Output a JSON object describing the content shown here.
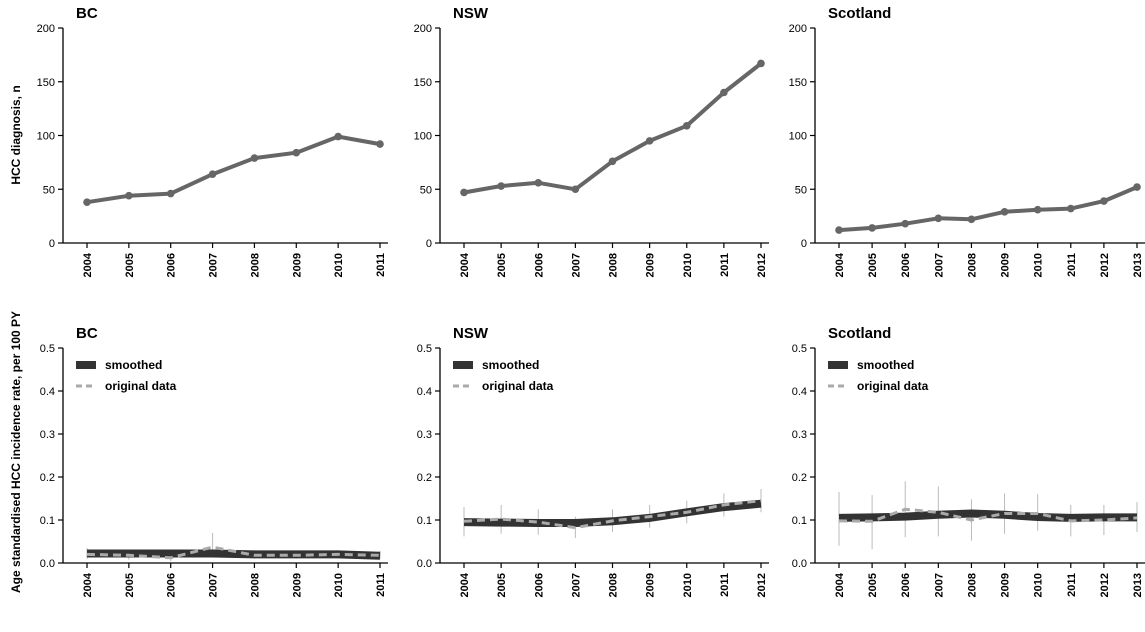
{
  "y_axis_labels": {
    "top": "HCC diagnosis, n",
    "bottom": "Age standardised HCC incidence rate, per 100 PY"
  },
  "legend": {
    "smoothed": "smoothed",
    "original": "original data"
  },
  "colors": {
    "count_line": "#666666",
    "smoothed_band": "#333333",
    "original_dash": "#aaaaaa",
    "error_bar": "#bbbbbb"
  },
  "chart_data": [
    {
      "type": "line",
      "title": "BC",
      "x": [
        "2004",
        "2005",
        "2006",
        "2007",
        "2008",
        "2009",
        "2010",
        "2011"
      ],
      "series": [
        {
          "values": [
            38,
            44,
            46,
            64,
            79,
            84,
            99,
            92
          ]
        }
      ],
      "ylim": [
        0,
        200
      ],
      "yticks": [
        0,
        50,
        100,
        150,
        200
      ],
      "ytick_labels": [
        "0",
        "50",
        "100",
        "150",
        "200"
      ]
    },
    {
      "type": "line",
      "title": "NSW",
      "x": [
        "2004",
        "2005",
        "2006",
        "2007",
        "2008",
        "2009",
        "2010",
        "2011",
        "2012"
      ],
      "series": [
        {
          "values": [
            47,
            53,
            56,
            50,
            76,
            95,
            109,
            140,
            167
          ]
        }
      ],
      "ylim": [
        0,
        200
      ],
      "yticks": [
        0,
        50,
        100,
        150,
        200
      ],
      "ytick_labels": [
        "0",
        "50",
        "100",
        "150",
        "200"
      ]
    },
    {
      "type": "line",
      "title": "Scotland",
      "x": [
        "2004",
        "2005",
        "2006",
        "2007",
        "2008",
        "2009",
        "2010",
        "2011",
        "2012",
        "2013"
      ],
      "series": [
        {
          "values": [
            12,
            14,
            18,
            23,
            22,
            29,
            31,
            32,
            39,
            52
          ]
        }
      ],
      "ylim": [
        0,
        200
      ],
      "yticks": [
        0,
        50,
        100,
        150,
        200
      ],
      "ytick_labels": [
        "0",
        "50",
        "100",
        "150",
        "200"
      ]
    },
    {
      "type": "line",
      "title": "BC",
      "x": [
        "2004",
        "2005",
        "2006",
        "2007",
        "2008",
        "2009",
        "2010",
        "2011"
      ],
      "series": [
        {
          "name": "smoothed",
          "values": [
            0.022,
            0.022,
            0.022,
            0.022,
            0.02,
            0.02,
            0.02,
            0.017
          ]
        },
        {
          "name": "original data",
          "values": [
            0.02,
            0.018,
            0.012,
            0.037,
            0.018,
            0.018,
            0.02,
            0.018
          ],
          "err_low": [
            0.01,
            0.008,
            0.004,
            0.02,
            0.01,
            0.01,
            0.012,
            0.01
          ],
          "err_high": [
            0.035,
            0.03,
            0.022,
            0.07,
            0.03,
            0.028,
            0.03,
            0.028
          ]
        }
      ],
      "ylim": [
        0,
        0.5
      ],
      "yticks": [
        0,
        0.1,
        0.2,
        0.3,
        0.4,
        0.5
      ],
      "ytick_labels": [
        "0.0",
        "0.1",
        "0.2",
        "0.3",
        "0.4",
        "0.5"
      ]
    },
    {
      "type": "line",
      "title": "NSW",
      "x": [
        "2004",
        "2005",
        "2006",
        "2007",
        "2008",
        "2009",
        "2010",
        "2011",
        "2012"
      ],
      "series": [
        {
          "name": "smoothed",
          "values": [
            0.095,
            0.094,
            0.093,
            0.093,
            0.097,
            0.105,
            0.118,
            0.13,
            0.138
          ]
        },
        {
          "name": "original data",
          "values": [
            0.097,
            0.102,
            0.095,
            0.082,
            0.098,
            0.108,
            0.118,
            0.135,
            0.145
          ],
          "err_low": [
            0.062,
            0.068,
            0.066,
            0.058,
            0.072,
            0.082,
            0.092,
            0.108,
            0.118
          ],
          "err_high": [
            0.13,
            0.135,
            0.125,
            0.108,
            0.125,
            0.135,
            0.145,
            0.162,
            0.172
          ]
        }
      ],
      "ylim": [
        0,
        0.5
      ],
      "yticks": [
        0,
        0.1,
        0.2,
        0.3,
        0.4,
        0.5
      ],
      "ytick_labels": [
        "0.0",
        "0.1",
        "0.2",
        "0.3",
        "0.4",
        "0.5"
      ]
    },
    {
      "type": "line",
      "title": "Scotland",
      "x": [
        "2004",
        "2005",
        "2006",
        "2007",
        "2008",
        "2009",
        "2010",
        "2011",
        "2012",
        "2013"
      ],
      "series": [
        {
          "name": "smoothed",
          "values": [
            0.105,
            0.106,
            0.108,
            0.112,
            0.115,
            0.112,
            0.107,
            0.105,
            0.106,
            0.106
          ]
        },
        {
          "name": "original data",
          "values": [
            0.098,
            0.097,
            0.125,
            0.118,
            0.1,
            0.115,
            0.115,
            0.098,
            0.1,
            0.105
          ],
          "err_low": [
            0.04,
            0.032,
            0.06,
            0.062,
            0.052,
            0.068,
            0.075,
            0.062,
            0.065,
            0.072
          ],
          "err_high": [
            0.165,
            0.158,
            0.19,
            0.178,
            0.148,
            0.162,
            0.16,
            0.135,
            0.135,
            0.142
          ]
        }
      ],
      "ylim": [
        0,
        0.5
      ],
      "yticks": [
        0,
        0.1,
        0.2,
        0.3,
        0.4,
        0.5
      ],
      "ytick_labels": [
        "0.0",
        "0.1",
        "0.2",
        "0.3",
        "0.4",
        "0.5"
      ]
    }
  ]
}
